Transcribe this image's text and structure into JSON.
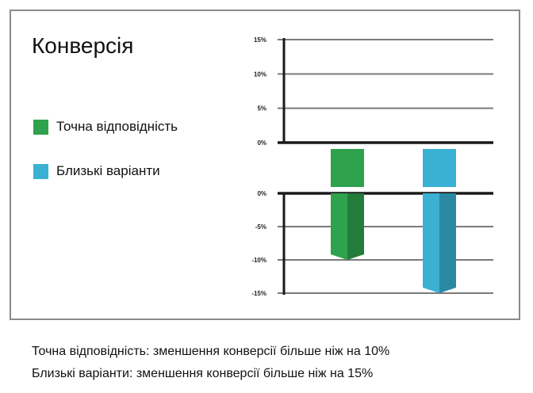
{
  "title": "Конверсія",
  "legend": [
    {
      "label": "Точна відповідність",
      "color": "#2ea24d"
    },
    {
      "label": "Близькі варіанти",
      "color": "#3ab0d3"
    }
  ],
  "notes": [
    "Точна відповідність: зменшення конверсії більше ніж на 10%",
    "Близькі варіанти: зменшення конверсії більше ніж на 15%"
  ],
  "chart_data": {
    "type": "bar",
    "title": "Конверсія",
    "xlabel": "",
    "ylabel": "",
    "grid": true,
    "legend_position": "left",
    "upper_axis": {
      "ticks": [
        "15%",
        "10%",
        "5%",
        "0%"
      ],
      "range": [
        0,
        15
      ]
    },
    "lower_axis": {
      "ticks": [
        "0%",
        "-5%",
        "-10%",
        "-15%"
      ],
      "range": [
        -15,
        0
      ]
    },
    "series": [
      {
        "name": "Точна відповідність",
        "value": -10,
        "color": "#2ea24d",
        "shade": "#237c3b"
      },
      {
        "name": "Близькі варіанти",
        "value": -15,
        "color": "#3ab0d3",
        "shade": "#2b88a3"
      }
    ]
  }
}
